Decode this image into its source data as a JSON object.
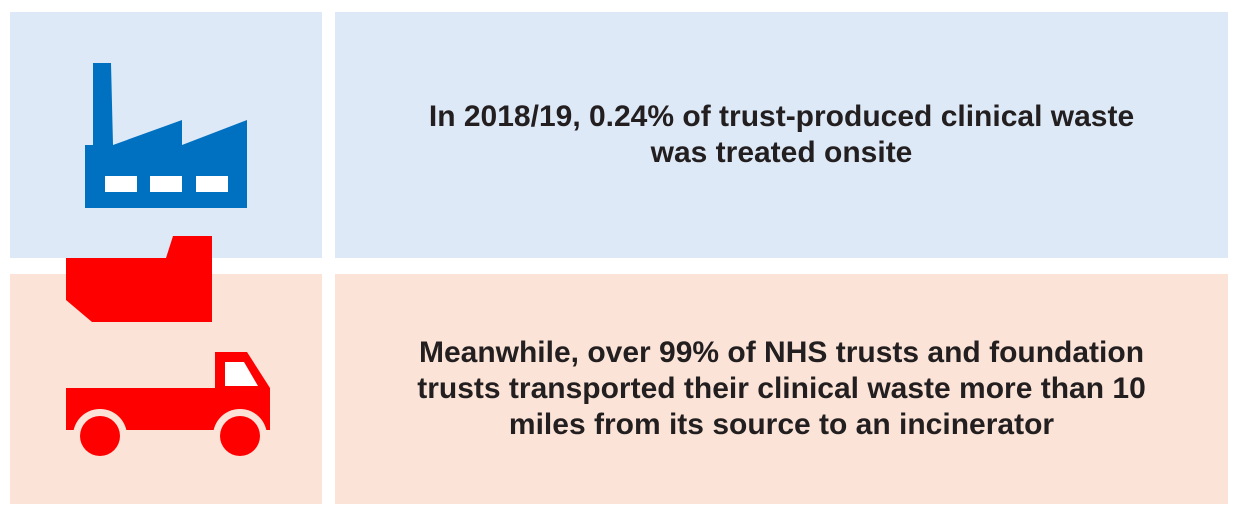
{
  "rows": [
    {
      "lines": [
        "In 2018/19, 0.24% of trust-produced clinical waste",
        "was treated onsite"
      ]
    },
    {
      "lines": [
        "Meanwhile, over 99% of NHS trusts and foundation",
        "trusts transported their clinical waste more than 10",
        "miles from its source to an incinerator"
      ]
    }
  ]
}
